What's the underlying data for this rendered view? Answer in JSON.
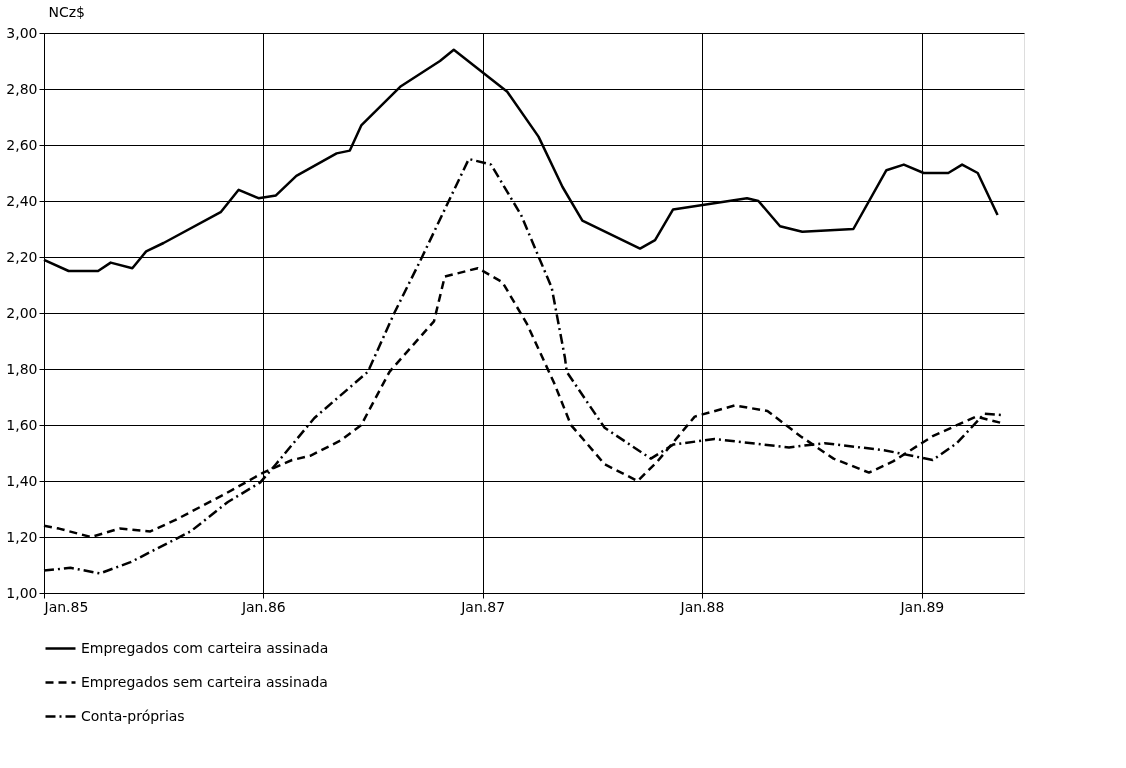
{
  "chart_data": {
    "type": "line",
    "ylabel": "NCz$",
    "xlim": [
      "1985-01-01",
      "1989-06-20"
    ],
    "ylim": [
      1.0,
      3.0
    ],
    "xticks": [
      {
        "value": "1985-01",
        "label": "Jan.85"
      },
      {
        "value": "1986-01",
        "label": "Jan.86"
      },
      {
        "value": "1987-01",
        "label": "Jan.87"
      },
      {
        "value": "1988-01",
        "label": "Jan.88"
      },
      {
        "value": "1989-01",
        "label": "Jan.89"
      }
    ],
    "yticks": [
      {
        "value": 1.0,
        "label": "1,00"
      },
      {
        "value": 1.2,
        "label": "1,20"
      },
      {
        "value": 1.4,
        "label": "1,40"
      },
      {
        "value": 1.6,
        "label": "1,60"
      },
      {
        "value": 1.8,
        "label": "1,80"
      },
      {
        "value": 2.0,
        "label": "2,00"
      },
      {
        "value": 2.2,
        "label": "2,20"
      },
      {
        "value": 2.4,
        "label": "2,40"
      },
      {
        "value": 2.6,
        "label": "2,60"
      },
      {
        "value": 2.8,
        "label": "2,80"
      },
      {
        "value": 3.0,
        "label": "3,00"
      }
    ],
    "grid": true,
    "legend": "bottom",
    "marker": "none",
    "series": [
      {
        "name": "Empregados com carteira assinada",
        "color": "#000000",
        "line_style": "solid",
        "x": [
          "1985-01-01",
          "1985-02-11",
          "1985-04-01",
          "1985-04-22",
          "1985-05-28",
          "1985-06-20",
          "1985-07-19",
          "1985-10-22",
          "1985-11-21",
          "1985-12-24",
          "1986-01-22",
          "1986-02-25",
          "1986-05-03",
          "1986-05-25",
          "1986-06-13",
          "1986-08-18",
          "1986-10-22",
          "1986-11-14",
          "1987-02-11",
          "1987-04-04",
          "1987-05-14",
          "1987-06-16",
          "1987-09-20",
          "1987-10-15",
          "1987-11-14",
          "1988-03-16",
          "1988-04-04",
          "1988-05-10",
          "1988-06-16",
          "1988-09-09",
          "1988-11-03",
          "1988-12-02",
          "1989-01-04",
          "1989-02-14",
          "1989-03-09",
          "1989-04-04",
          "1989-05-07"
        ],
        "values": [
          2.19,
          2.15,
          2.15,
          2.18,
          2.16,
          2.22,
          2.25,
          2.36,
          2.44,
          2.41,
          2.42,
          2.49,
          2.57,
          2.58,
          2.67,
          2.81,
          2.9,
          2.94,
          2.79,
          2.63,
          2.45,
          2.33,
          2.23,
          2.26,
          2.37,
          2.41,
          2.4,
          2.31,
          2.29,
          2.3,
          2.51,
          2.53,
          2.5,
          2.5,
          2.53,
          2.5,
          2.35
        ]
      },
      {
        "name": "Empregados sem carteira assinada",
        "color": "#000000",
        "line_style": "dashed",
        "x": [
          "1985-01-01",
          "1985-01-26",
          "1985-03-20",
          "1985-05-07",
          "1985-06-27",
          "1985-08-07",
          "1985-10-26",
          "1986-01-01",
          "1986-02-18",
          "1986-03-20",
          "1986-05-10",
          "1986-06-13",
          "1986-07-30",
          "1986-10-12",
          "1986-10-30",
          "1986-12-24",
          "1987-02-03",
          "1987-03-16",
          "1987-04-30",
          "1987-05-28",
          "1987-07-23",
          "1987-09-16",
          "1987-10-19",
          "1987-12-20",
          "1988-02-25",
          "1988-04-19",
          "1988-06-13",
          "1988-08-07",
          "1988-10-05",
          "1988-11-14",
          "1989-01-19",
          "1989-04-01",
          "1989-05-18"
        ],
        "values": [
          1.24,
          1.23,
          1.2,
          1.23,
          1.22,
          1.26,
          1.35,
          1.43,
          1.475,
          1.49,
          1.545,
          1.6,
          1.79,
          1.97,
          2.13,
          2.16,
          2.11,
          1.96,
          1.75,
          1.6,
          1.46,
          1.4,
          1.47,
          1.63,
          1.67,
          1.65,
          1.56,
          1.48,
          1.43,
          1.47,
          1.56,
          1.63,
          1.605
        ]
      },
      {
        "name": "Conta-próprias",
        "color": "#000000",
        "line_style": "dashdot",
        "x": [
          "1985-01-01",
          "1985-02-14",
          "1985-04-04",
          "1985-05-25",
          "1985-09-02",
          "1985-11-03",
          "1985-12-27",
          "1986-01-22",
          "1986-03-27",
          "1986-06-24",
          "1986-08-07",
          "1986-09-20",
          "1986-12-09",
          "1987-01-15",
          "1987-03-06",
          "1987-04-26",
          "1987-05-18",
          "1987-05-21",
          "1987-07-23",
          "1987-10-08",
          "1987-11-14",
          "1988-01-22",
          "1988-05-25",
          "1988-07-23",
          "1988-10-30",
          "1989-01-19",
          "1989-02-28",
          "1989-04-15",
          "1989-05-18"
        ],
        "values": [
          1.08,
          1.09,
          1.07,
          1.11,
          1.22,
          1.325,
          1.395,
          1.46,
          1.625,
          1.79,
          2.0,
          2.19,
          2.55,
          2.53,
          2.35,
          2.09,
          1.84,
          1.79,
          1.59,
          1.48,
          1.53,
          1.55,
          1.52,
          1.535,
          1.51,
          1.475,
          1.535,
          1.64,
          1.635
        ]
      }
    ]
  }
}
